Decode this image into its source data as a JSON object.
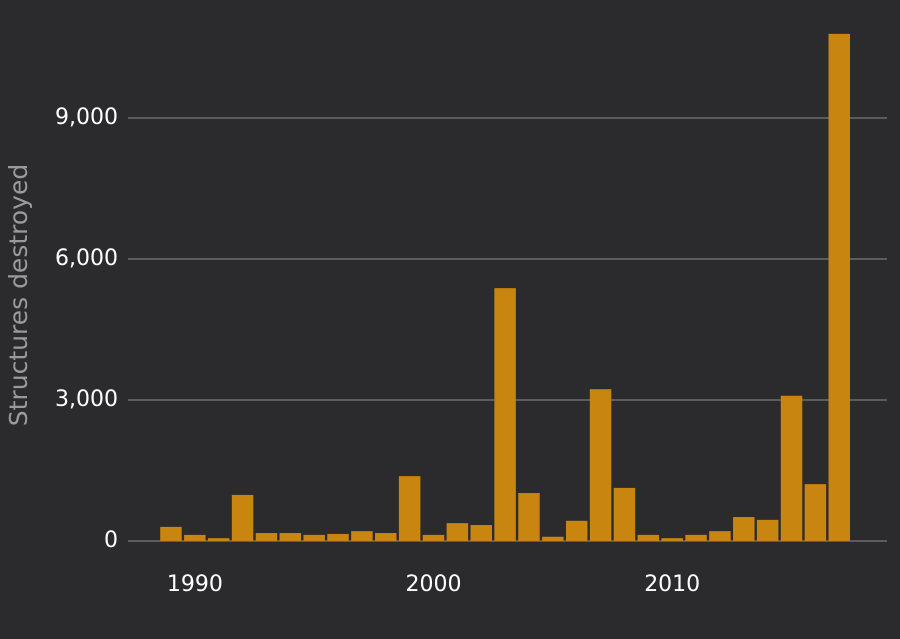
{
  "chart_data": {
    "type": "bar",
    "y_label": "Structures destroyed",
    "x": [
      1989,
      1990,
      1991,
      1992,
      1993,
      1994,
      1995,
      1996,
      1997,
      1998,
      1999,
      2000,
      2001,
      2002,
      2003,
      2004,
      2005,
      2006,
      2007,
      2008,
      2009,
      2010,
      2011,
      2012,
      2013,
      2014,
      2015,
      2016,
      2017
    ],
    "values": [
      300,
      130,
      60,
      980,
      170,
      170,
      130,
      150,
      210,
      170,
      1380,
      130,
      380,
      340,
      5380,
      1020,
      90,
      430,
      3230,
      1130,
      130,
      60,
      130,
      210,
      510,
      450,
      3090,
      1210,
      10790
    ],
    "color": "#c8850f",
    "xlim": [
      1987.2,
      2019
    ],
    "xticks": [
      1990,
      2000,
      2010
    ],
    "ylim": [
      0,
      11000
    ],
    "yticks": [
      0,
      {
        "value": 3000,
        "label": "3,000"
      },
      {
        "value": 6000,
        "label": "6,000"
      },
      {
        "value": 9000,
        "label": "9,000"
      }
    ],
    "grid": true
  }
}
